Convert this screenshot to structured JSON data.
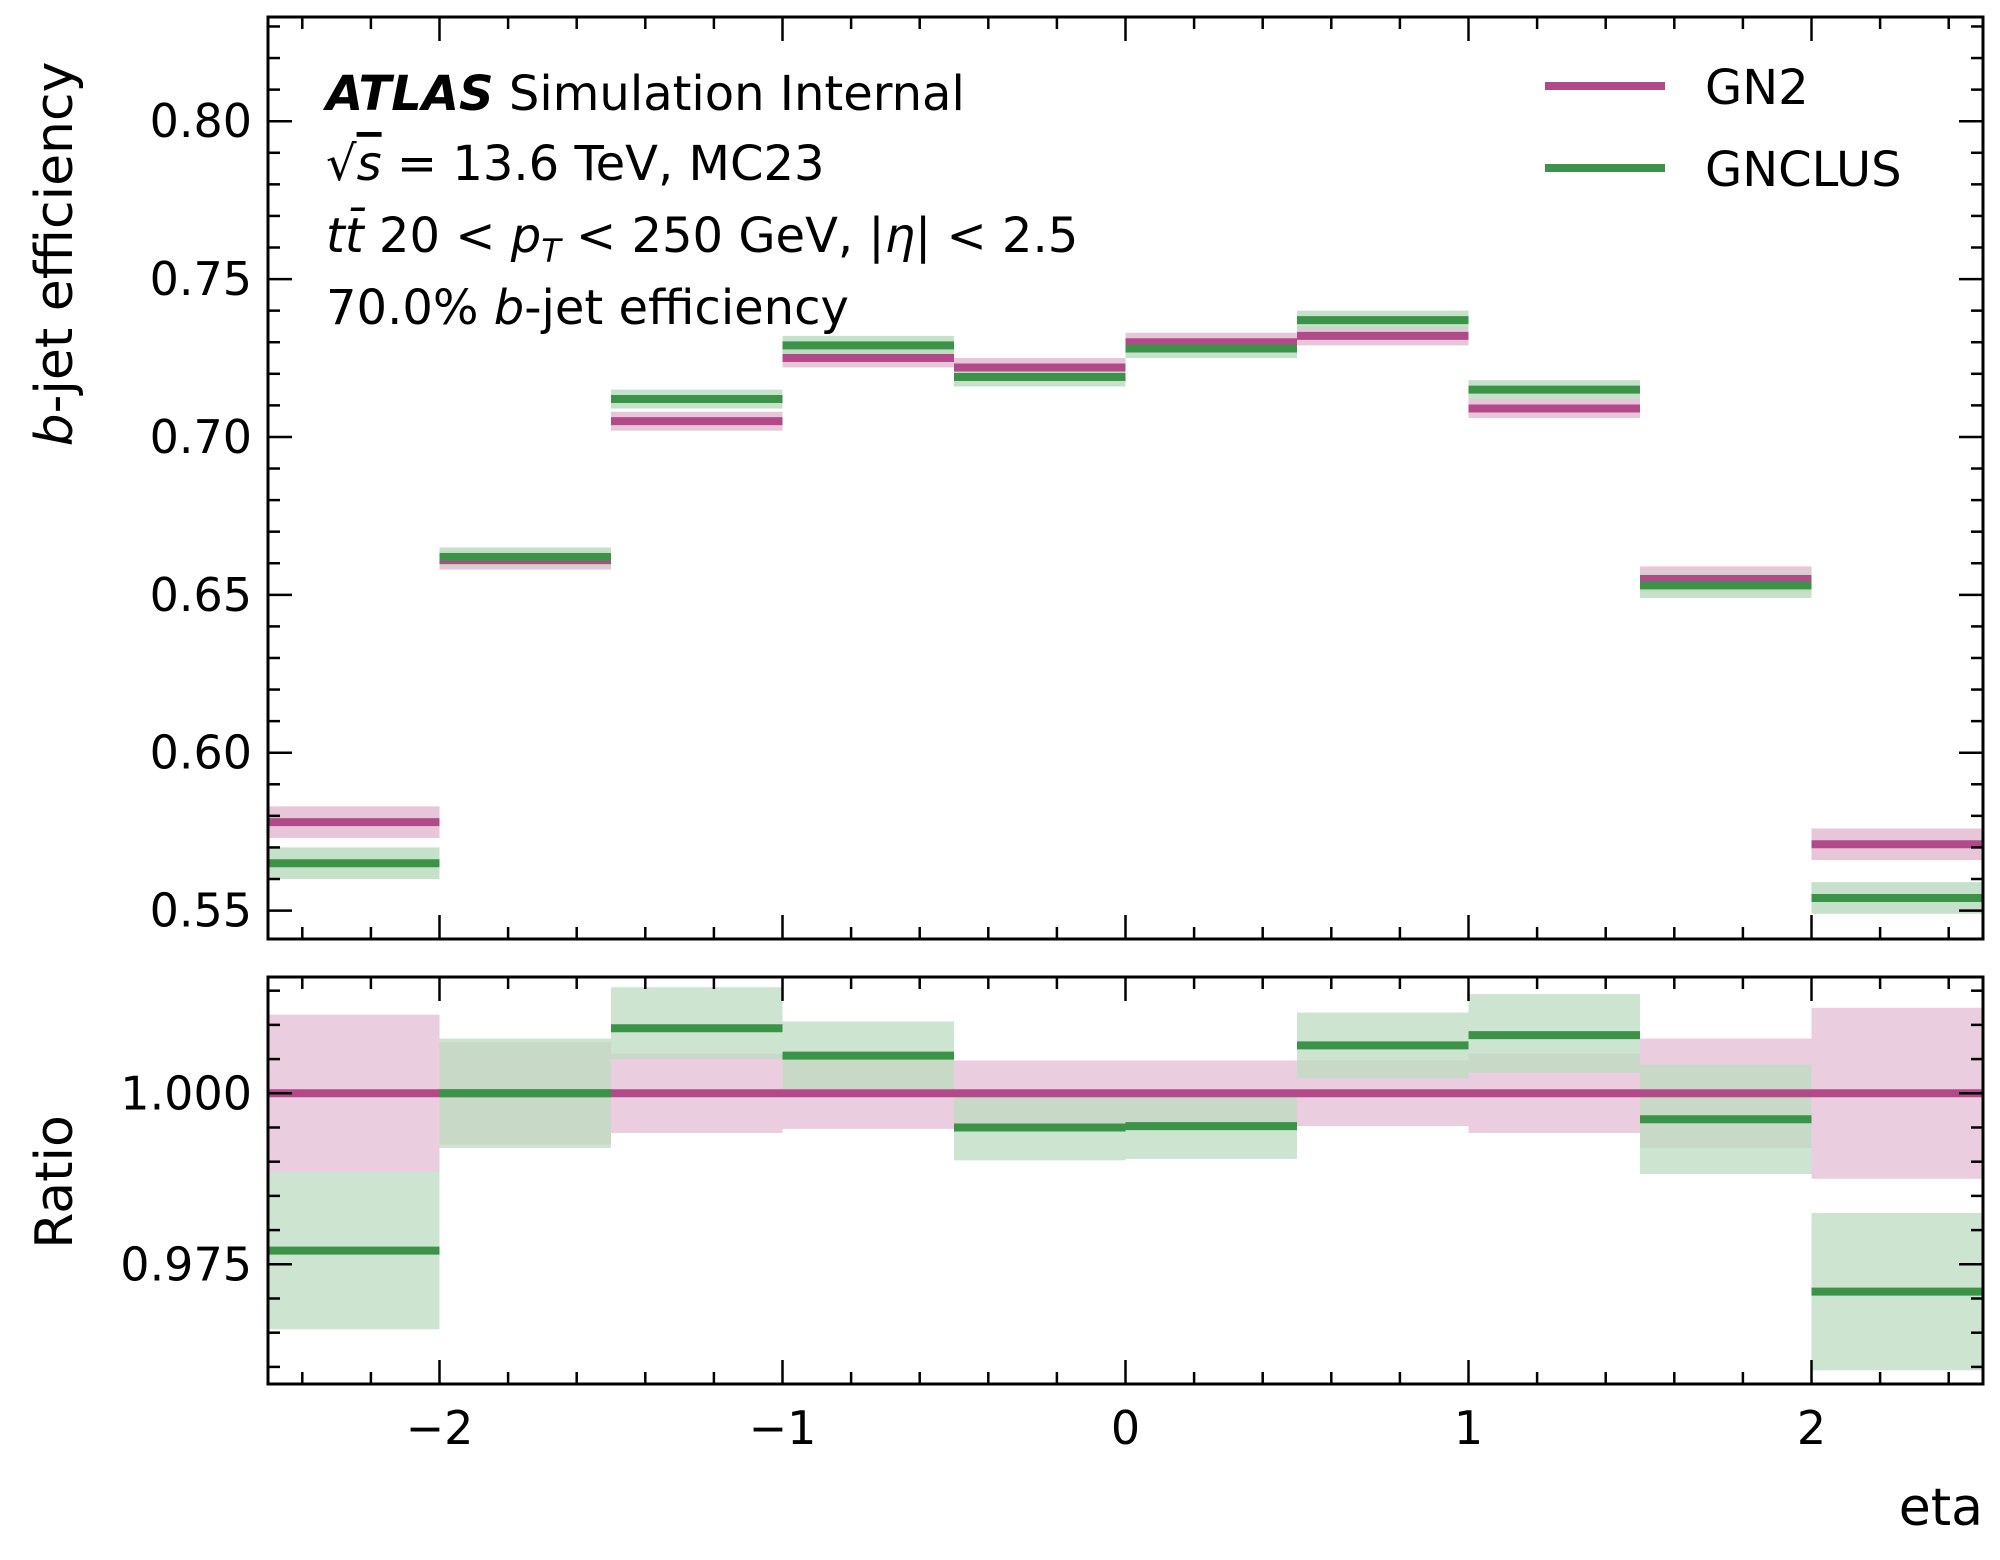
{
  "chart_data": [
    {
      "type": "line",
      "panel": "main",
      "ylabel_prefix": "b",
      "ylabel_rest": "-jet efficiency",
      "xlim": [
        -2.5,
        2.5
      ],
      "ylim": [
        0.541,
        0.833
      ],
      "yticks": [
        0.55,
        0.6,
        0.65,
        0.7,
        0.75,
        0.8
      ],
      "ytick_labels": [
        "0.55",
        "0.60",
        "0.65",
        "0.70",
        "0.75",
        "0.80"
      ],
      "bin_edges": [
        -2.5,
        -2.0,
        -1.5,
        -1.0,
        -0.5,
        0.0,
        0.5,
        1.0,
        1.5,
        2.0,
        2.5
      ],
      "series": [
        {
          "name": "GN2",
          "color": "#b24a89",
          "band_color": "#e3bcd4",
          "values": [
            0.578,
            0.661,
            0.705,
            0.725,
            0.722,
            0.73,
            0.732,
            0.709,
            0.655,
            0.571
          ],
          "errors": [
            0.005,
            0.003,
            0.003,
            0.003,
            0.003,
            0.003,
            0.003,
            0.003,
            0.004,
            0.005
          ]
        },
        {
          "name": "GNCLUS",
          "color": "#3a9346",
          "band_color": "#bcdcc0",
          "values": [
            0.565,
            0.662,
            0.712,
            0.729,
            0.719,
            0.728,
            0.737,
            0.715,
            0.653,
            0.554
          ],
          "errors": [
            0.005,
            0.003,
            0.003,
            0.003,
            0.003,
            0.003,
            0.003,
            0.003,
            0.004,
            0.005
          ]
        }
      ],
      "annotations": {
        "experiment_bold": "ATLAS",
        "experiment_rest": " Simulation Internal",
        "energy_sqrt": "√",
        "energy_s": "s",
        "energy_rest": " = 13.6 TeV, MC23",
        "selection_tt": "tt̄",
        "selection_mid": " 20 < ",
        "selection_pt": "p",
        "selection_pt_sub": "T",
        "selection_rest": " < 250 GeV, |",
        "selection_eta": "η",
        "selection_end": "| < 2.5",
        "wp_pre": "70.0% ",
        "wp_b": "b",
        "wp_rest": "-jet efficiency"
      },
      "legend": {
        "placement": "top-right",
        "entries": [
          "GN2",
          "GNCLUS"
        ]
      }
    },
    {
      "type": "line",
      "panel": "ratio",
      "ylabel": "Ratio",
      "xlabel": "eta",
      "xlim": [
        -2.5,
        2.5
      ],
      "ylim": [
        0.9575,
        1.017
      ],
      "yticks": [
        0.975,
        1.0
      ],
      "ytick_labels": [
        "0.975",
        "1.000"
      ],
      "xticks": [
        -2,
        -1,
        0,
        1,
        2
      ],
      "xtick_labels": [
        "−2",
        "−1",
        "0",
        "1",
        "2"
      ],
      "bin_edges": [
        -2.5,
        -2.0,
        -1.5,
        -1.0,
        -0.5,
        0.0,
        0.5,
        1.0,
        1.5,
        2.0,
        2.5
      ],
      "series": [
        {
          "name": "GN2",
          "color": "#b24a89",
          "band_color": "#e3bcd4",
          "values": [
            1.0,
            1.0,
            1.0,
            1.0,
            1.0,
            1.0,
            1.0,
            1.0,
            1.0,
            1.0
          ],
          "band_low": [
            0.9885,
            0.9925,
            0.9942,
            0.9948,
            0.9952,
            0.9952,
            0.9952,
            0.9942,
            0.992,
            0.9875
          ],
          "band_high": [
            1.0115,
            1.0075,
            1.0058,
            1.0052,
            1.0048,
            1.0048,
            1.0048,
            1.0058,
            1.008,
            1.0125
          ]
        },
        {
          "name": "GNCLUS",
          "color": "#3a9346",
          "band_color": "#bcdcc0",
          "values": [
            0.977,
            1.0,
            1.0095,
            1.0055,
            0.995,
            0.9952,
            1.007,
            1.0085,
            0.9962,
            0.971
          ],
          "band_low": [
            0.9655,
            0.992,
            1.005,
            0.9995,
            0.9902,
            0.9904,
            1.0022,
            1.003,
            0.9882,
            0.9595
          ],
          "band_high": [
            0.9885,
            1.008,
            1.0155,
            1.0105,
            0.9998,
            1.0,
            1.0118,
            1.0145,
            1.0042,
            0.9825
          ]
        }
      ]
    }
  ]
}
